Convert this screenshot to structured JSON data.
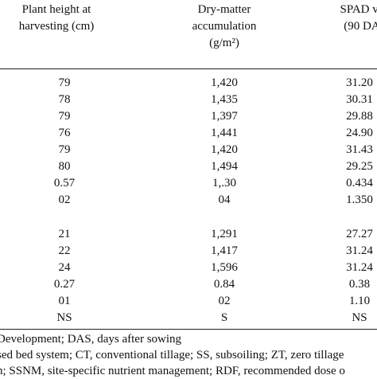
{
  "header": {
    "col1": [
      "Plant height at",
      "harvesting (cm)"
    ],
    "col2": [
      "Dry-matter",
      "accumulation",
      "(g/m²)"
    ],
    "col3": [
      "SPAD va",
      "(90 DA"
    ]
  },
  "group1": [
    [
      "79",
      "1,420",
      "31.20"
    ],
    [
      "78",
      "1,435",
      "30.31"
    ],
    [
      "79",
      "1,397",
      "29.88"
    ],
    [
      "76",
      "1,441",
      "24.90"
    ],
    [
      "79",
      "1,420",
      "31.43"
    ],
    [
      "80",
      "1,494",
      "29.25"
    ],
    [
      "0.57",
      "1,.30",
      "0.434"
    ],
    [
      "02",
      "04",
      "1.350"
    ]
  ],
  "group2": [
    [
      "21",
      "1,291",
      "27.27"
    ],
    [
      "22",
      "1,417",
      "31.24"
    ],
    [
      "24",
      "1,596",
      "31.24"
    ],
    [
      "0.27",
      "0.84",
      "0.38"
    ],
    [
      "01",
      "02",
      "1.10"
    ],
    [
      "NS",
      "S",
      "NS"
    ]
  ],
  "footnotes": [
    "Development; DAS, days after sowing",
    "sed bed system; CT, conventional tillage; SS, subsoiling; ZT, zero tillage",
    "n; SSNM, site-specific nutrient management; RDF, recommended dose o"
  ]
}
